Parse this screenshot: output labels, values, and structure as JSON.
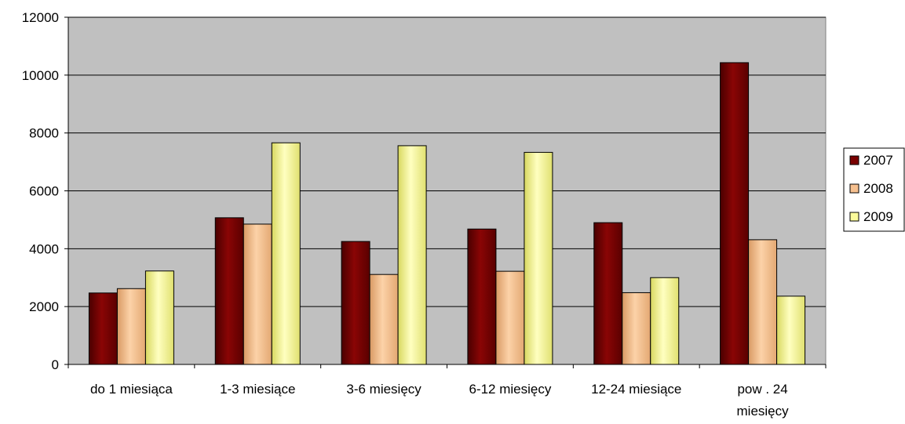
{
  "chart_data": {
    "type": "bar",
    "categories": [
      [
        "do 1 miesiąca"
      ],
      [
        "1-3 miesiące"
      ],
      [
        "3-6 miesięcy"
      ],
      [
        "6-12 miesięcy"
      ],
      [
        "12-24 miesiące"
      ],
      [
        "pow . 24",
        "miesięcy"
      ]
    ],
    "series": [
      {
        "name": "2007",
        "color": "#7a0000",
        "values": [
          2470,
          5070,
          4250,
          4680,
          4900,
          10430
        ]
      },
      {
        "name": "2008",
        "color": "#f6c08f",
        "values": [
          2620,
          4850,
          3110,
          3220,
          2480,
          4310
        ]
      },
      {
        "name": "2009",
        "color": "#fbfb9b",
        "values": [
          3230,
          7660,
          7560,
          7330,
          3000,
          2360
        ]
      }
    ],
    "ylim": [
      0,
      12000
    ],
    "yticks": [
      0,
      2000,
      4000,
      6000,
      8000,
      10000,
      12000
    ],
    "plot_background": "#c0c0c0",
    "grid": true,
    "legend_position": "right",
    "title": "",
    "xlabel": "",
    "ylabel": ""
  }
}
